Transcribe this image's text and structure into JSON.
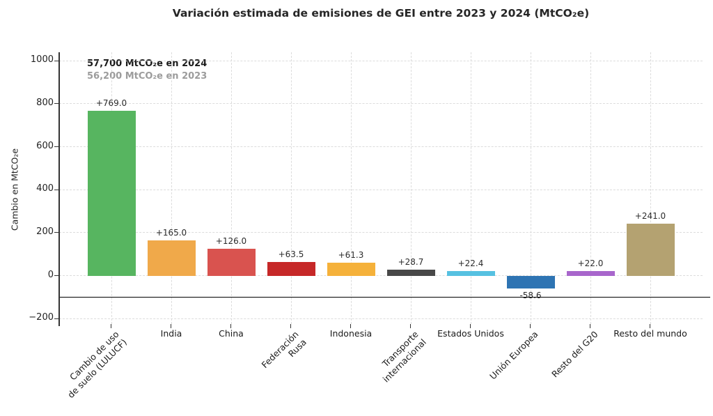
{
  "annotation": {
    "line_2024": "57,700 MtCO₂e en 2024",
    "line_2023": "56,200 MtCO₂e en 2023"
  },
  "chart_data": {
    "type": "bar",
    "title": "Variación estimada de emisiones de GEI entre 2023 y 2024 (MtCO₂e)",
    "xlabel": "",
    "ylabel": "Cambio en MtCO₂e",
    "ylim": [
      -225,
      1040
    ],
    "yticks": [
      -200,
      0,
      200,
      400,
      600,
      800,
      1000
    ],
    "grid": true,
    "grid_style": "dashed",
    "legend": "none",
    "baseline_value": -100,
    "categories": [
      "Cambio de uso de suelo (LULUCF)",
      "India",
      "China",
      "Federación Rusa",
      "Indonesia",
      "Transporte internacional",
      "Estados Unidos",
      "Unión Europea",
      "Resto del G20",
      "Resto del mundo"
    ],
    "values": [
      769.0,
      165.0,
      126.0,
      63.5,
      61.3,
      28.7,
      22.4,
      -58.6,
      22.0,
      241.0
    ],
    "bar_labels": [
      "+769.0",
      "+165.0",
      "+126.0",
      "+63.5",
      "+61.3",
      "+28.7",
      "+22.4",
      "-58.6",
      "+22.0",
      "+241.0"
    ],
    "bar_colors": [
      "#57b560",
      "#f0a94a",
      "#d9534f",
      "#c62828",
      "#f5b13a",
      "#484848",
      "#56c1e1",
      "#2e74b3",
      "#a866cc",
      "#b4a271"
    ],
    "tick_label_lines": [
      [
        "Cambio de uso",
        "de suelo (LULUCF)"
      ],
      [
        "India"
      ],
      [
        "China"
      ],
      [
        "Federación",
        "Rusa"
      ],
      [
        "Indonesia"
      ],
      [
        "Transporte",
        "internacional"
      ],
      [
        "Estados Unidos"
      ],
      [
        "Unión Europea"
      ],
      [
        "Resto del G20"
      ],
      [
        "Resto del mundo"
      ]
    ],
    "tick_rotated": [
      true,
      false,
      false,
      true,
      false,
      true,
      false,
      true,
      true,
      false
    ]
  },
  "colors": {
    "annotation_2024": "#1a1a1a",
    "annotation_2023": "#9c9c9c",
    "grid": "#dcdcdc",
    "axis": "#333333",
    "baseline": "#000000",
    "value_label": "#2b2b2b",
    "title": "#262626",
    "background": "#ffffff"
  }
}
